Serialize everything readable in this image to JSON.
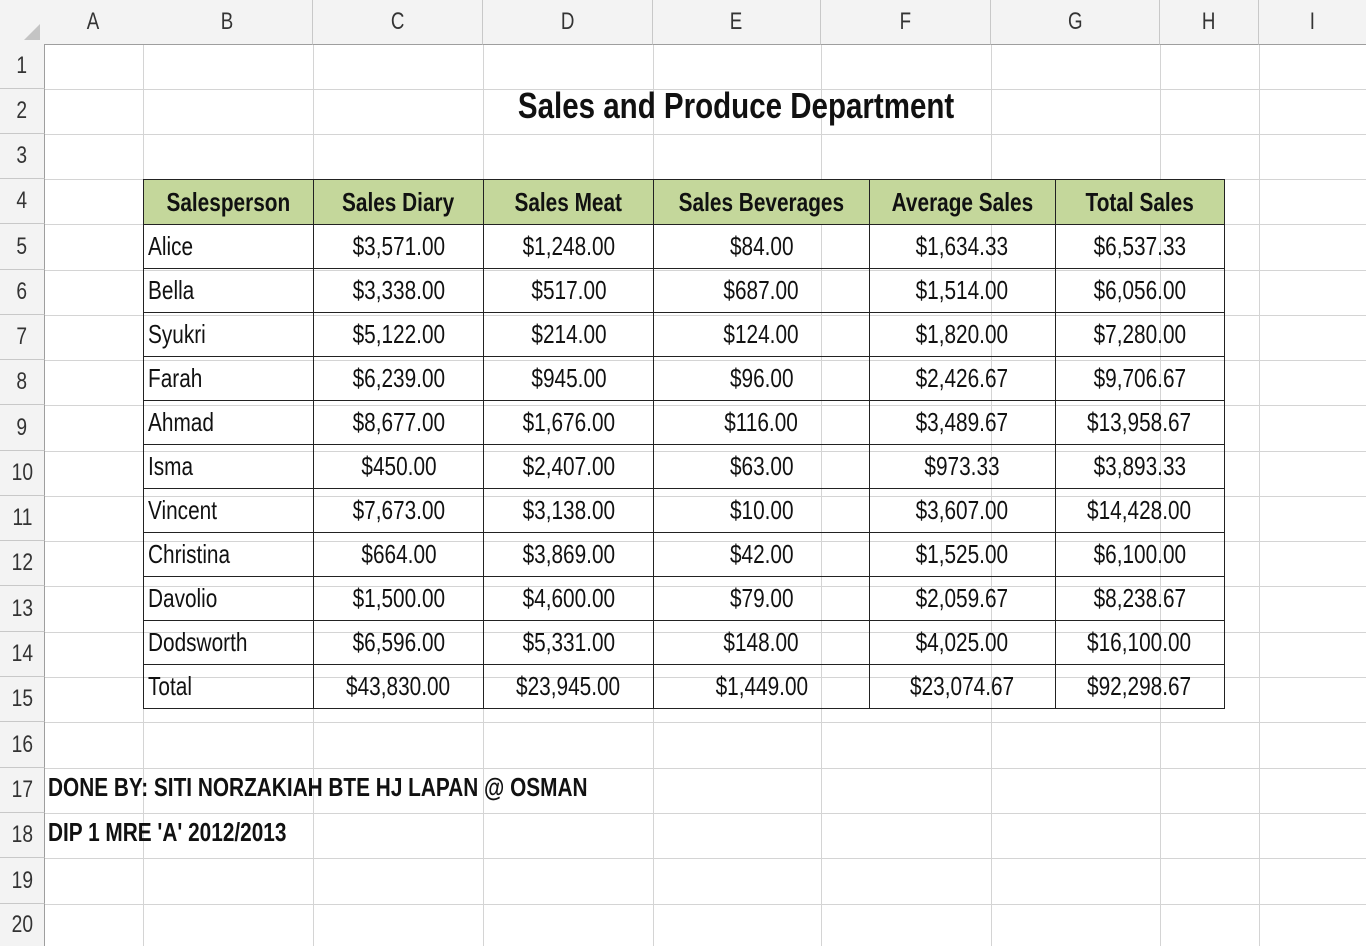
{
  "columns": [
    "A",
    "B",
    "C",
    "D",
    "E",
    "F",
    "G",
    "H",
    "I"
  ],
  "rows": [
    "1",
    "2",
    "3",
    "4",
    "5",
    "6",
    "7",
    "8",
    "9",
    "10",
    "11",
    "12",
    "13",
    "14",
    "15",
    "16",
    "17",
    "18",
    "19",
    "20"
  ],
  "title": "Sales and Produce Department",
  "table": {
    "headers": [
      "Salesperson",
      "Sales Diary",
      "Sales Meat",
      "Sales Beverages",
      "Average Sales",
      "Total Sales"
    ],
    "rows": [
      [
        "Alice",
        "$3,571.00",
        "$1,248.00",
        "$84.00",
        "$1,634.33",
        "$6,537.33"
      ],
      [
        "Bella",
        "$3,338.00",
        "$517.00",
        "$687.00",
        "$1,514.00",
        "$6,056.00"
      ],
      [
        "Syukri",
        "$5,122.00",
        "$214.00",
        "$124.00",
        "$1,820.00",
        "$7,280.00"
      ],
      [
        "Farah",
        "$6,239.00",
        "$945.00",
        "$96.00",
        "$2,426.67",
        "$9,706.67"
      ],
      [
        "Ahmad",
        "$8,677.00",
        "$1,676.00",
        "$116.00",
        "$3,489.67",
        "$13,958.67"
      ],
      [
        "Isma",
        "$450.00",
        "$2,407.00",
        "$63.00",
        "$973.33",
        "$3,893.33"
      ],
      [
        "Vincent",
        "$7,673.00",
        "$3,138.00",
        "$10.00",
        "$3,607.00",
        "$14,428.00"
      ],
      [
        "Christina",
        "$664.00",
        "$3,869.00",
        "$42.00",
        "$1,525.00",
        "$6,100.00"
      ],
      [
        "Davolio",
        "$1,500.00",
        "$4,600.00",
        "$79.00",
        "$2,059.67",
        "$8,238.67"
      ],
      [
        "Dodsworth",
        "$6,596.00",
        "$5,331.00",
        "$148.00",
        "$4,025.00",
        "$16,100.00"
      ],
      [
        "Total",
        "$43,830.00",
        "$23,945.00",
        "$1,449.00",
        "$23,074.67",
        "$92,298.67"
      ]
    ]
  },
  "notes": {
    "done_by": "DONE BY: SITI NORZAKIAH BTE HJ LAPAN @ OSMAN",
    "class": "DIP 1 MRE 'A' 2012/2013"
  },
  "colors": {
    "header_fill": "#c4d79b",
    "gridline": "#d4d4d4",
    "heading_bg": "#f3f3f3"
  }
}
